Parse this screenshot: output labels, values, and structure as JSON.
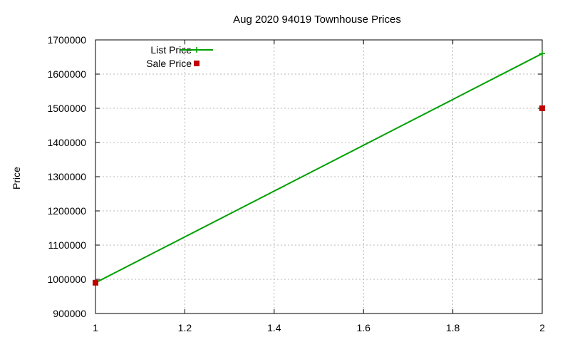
{
  "chart_data": {
    "type": "line",
    "title": "Aug 2020 94019 Townhouse Prices",
    "xlabel": "",
    "ylabel": "Price",
    "xlim": [
      1,
      2
    ],
    "ylim": [
      900000,
      1700000
    ],
    "x_ticks": [
      "1",
      "1.2",
      "1.4",
      "1.6",
      "1.8",
      "2"
    ],
    "y_ticks": [
      "900000",
      "1000000",
      "1100000",
      "1200000",
      "1300000",
      "1400000",
      "1500000",
      "1600000",
      "1700000"
    ],
    "grid": true,
    "legend_position": "top-left",
    "series": [
      {
        "name": "List Price",
        "style": "line-with-plus-markers",
        "color": "#00a000",
        "x": [
          1,
          2
        ],
        "y": [
          990000,
          1660000
        ]
      },
      {
        "name": "Sale Price",
        "style": "square-markers",
        "color": "#c00000",
        "x": [
          1,
          2
        ],
        "y": [
          990000,
          1500000
        ]
      }
    ]
  }
}
